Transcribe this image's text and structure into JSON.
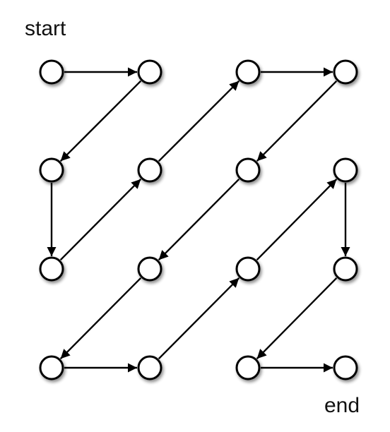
{
  "labels": {
    "start": "start",
    "end": "end"
  },
  "nodes": [
    {
      "id": "r1c1"
    },
    {
      "id": "r1c2"
    },
    {
      "id": "r1c3"
    },
    {
      "id": "r1c4"
    },
    {
      "id": "r2c1"
    },
    {
      "id": "r2c2"
    },
    {
      "id": "r2c3"
    },
    {
      "id": "r2c4"
    },
    {
      "id": "r3c1"
    },
    {
      "id": "r3c2"
    },
    {
      "id": "r3c3"
    },
    {
      "id": "r3c4"
    },
    {
      "id": "r4c1"
    },
    {
      "id": "r4c2"
    },
    {
      "id": "r4c3"
    },
    {
      "id": "r4c4"
    }
  ],
  "path": [
    "r1c1",
    "r1c2",
    "r2c1",
    "r3c1",
    "r2c2",
    "r1c3",
    "r1c4",
    "r2c3",
    "r3c2",
    "r4c1",
    "r4c2",
    "r3c3",
    "r2c4",
    "r3c4",
    "r4c3",
    "r4c4"
  ],
  "colors": {
    "node_fill": "#ffffff",
    "stroke": "#000000",
    "shadow": "#9a9a9a"
  }
}
